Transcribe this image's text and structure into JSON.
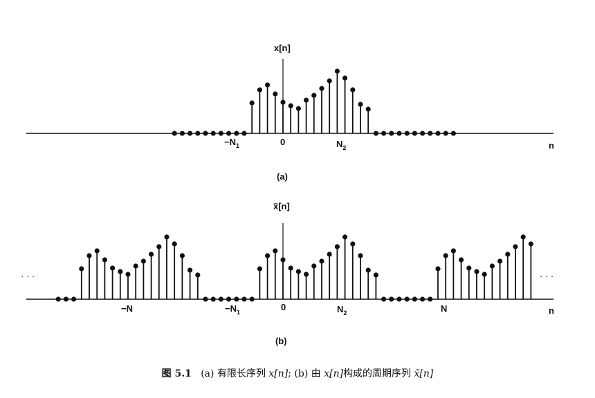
{
  "figure_a": {
    "signal_label": "x[n]",
    "tick_neg_n1": "−N",
    "tick_neg_n1_sub": "1",
    "tick_zero": "0",
    "tick_n2": "N",
    "tick_n2_sub": "2",
    "axis_n": "n",
    "panel_label": "(a)",
    "sequence": [
      0,
      0,
      0,
      0,
      0,
      0,
      0,
      0,
      0,
      0,
      44,
      63,
      70,
      57,
      45,
      40,
      36,
      48,
      55,
      65,
      76,
      90,
      80,
      63,
      42,
      35,
      0,
      0,
      0,
      0,
      0,
      0,
      0,
      0,
      0,
      0,
      0
    ],
    "n_start": -14
  },
  "figure_b": {
    "signal_label": "x̃[n]",
    "tick_neg_n": "−N",
    "tick_neg_n1": "−N",
    "tick_neg_n1_sub": "1",
    "tick_zero": "0",
    "tick_n2": "N",
    "tick_n2_sub": "2",
    "tick_n": "N",
    "axis_n": "n",
    "panel_label": "(b)",
    "ellipsis": "· · ·",
    "period_pattern": [
      44,
      63,
      70,
      57,
      45,
      40,
      36,
      48,
      55,
      65,
      76,
      90,
      80,
      63,
      42,
      35,
      0,
      0,
      0,
      0,
      0,
      0,
      0
    ],
    "periods": 3
  },
  "caption": {
    "fig_no": "图 5.1",
    "text_a": "(a) 有限长序列",
    "seq_a": "x[n]",
    "sep": "; (b) 由",
    "seq_b": "x[n]",
    "text_b": "构成的周期序列",
    "seq_periodic": "x̃[n]"
  }
}
